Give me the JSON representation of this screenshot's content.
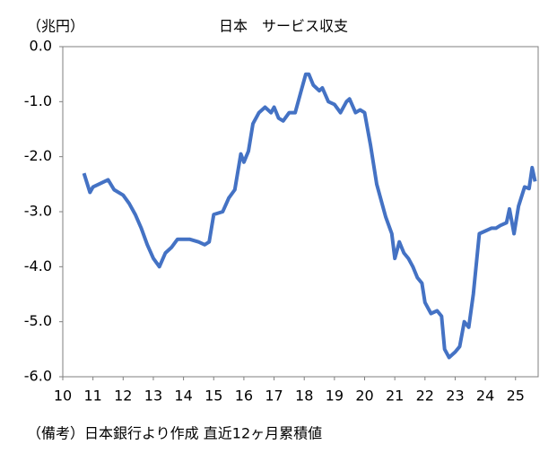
{
  "chart_data": {
    "type": "line",
    "title": "日本　サービス収支",
    "y_unit_label": "（兆円）",
    "note": "（備考）日本銀行より作成 直近12ヶ月累積値",
    "xlim": [
      10,
      25.75
    ],
    "xticks": [
      10,
      11,
      12,
      13,
      14,
      15,
      16,
      17,
      18,
      19,
      20,
      21,
      22,
      23,
      24,
      25
    ],
    "ylim": [
      -6,
      0
    ],
    "yticks": [
      {
        "value": 0,
        "label": "0.0"
      },
      {
        "value": -1,
        "label": "-1.0"
      },
      {
        "value": -2,
        "label": "-2.0"
      },
      {
        "value": -3,
        "label": "-3.0"
      },
      {
        "value": -4,
        "label": "-4.0"
      },
      {
        "value": -5,
        "label": "-5.0"
      },
      {
        "value": -6,
        "label": "-6.0"
      }
    ],
    "grid": false,
    "series": [
      {
        "color": "#4472c4",
        "x": [
          10.7,
          10.9,
          11.0,
          11.5,
          11.7,
          12.0,
          12.2,
          12.4,
          12.6,
          12.8,
          13.0,
          13.2,
          13.4,
          13.6,
          13.8,
          14.2,
          14.5,
          14.7,
          14.85,
          15.0,
          15.3,
          15.5,
          15.7,
          15.9,
          16.0,
          16.15,
          16.3,
          16.5,
          16.7,
          16.9,
          17.0,
          17.15,
          17.3,
          17.5,
          17.7,
          17.9,
          18.05,
          18.15,
          18.3,
          18.5,
          18.6,
          18.8,
          19.0,
          19.2,
          19.4,
          19.5,
          19.7,
          19.85,
          20.0,
          20.2,
          20.4,
          20.7,
          20.9,
          21.0,
          21.15,
          21.3,
          21.45,
          21.6,
          21.75,
          21.9,
          22.0,
          22.2,
          22.4,
          22.55,
          22.65,
          22.8,
          23.0,
          23.15,
          23.3,
          23.45,
          23.6,
          23.8,
          24.0,
          24.2,
          24.35,
          24.5,
          24.7,
          24.8,
          24.95,
          25.1,
          25.3,
          25.45,
          25.55,
          25.65
        ],
        "values": [
          -2.3,
          -2.65,
          -2.55,
          -2.42,
          -2.6,
          -2.7,
          -2.85,
          -3.05,
          -3.3,
          -3.6,
          -3.85,
          -4.0,
          -3.75,
          -3.65,
          -3.5,
          -3.5,
          -3.55,
          -3.6,
          -3.55,
          -3.05,
          -3.0,
          -2.75,
          -2.6,
          -1.95,
          -2.1,
          -1.9,
          -1.4,
          -1.2,
          -1.1,
          -1.2,
          -1.1,
          -1.3,
          -1.35,
          -1.2,
          -1.2,
          -0.8,
          -0.5,
          -0.5,
          -0.7,
          -0.8,
          -0.75,
          -1.0,
          -1.05,
          -1.2,
          -1.0,
          -0.95,
          -1.2,
          -1.15,
          -1.2,
          -1.8,
          -2.5,
          -3.1,
          -3.4,
          -3.85,
          -3.55,
          -3.75,
          -3.85,
          -4.0,
          -4.2,
          -4.3,
          -4.65,
          -4.85,
          -4.8,
          -4.9,
          -5.5,
          -5.65,
          -5.55,
          -5.45,
          -5.0,
          -5.1,
          -4.5,
          -3.4,
          -3.35,
          -3.3,
          -3.3,
          -3.25,
          -3.2,
          -2.95,
          -3.4,
          -2.9,
          -2.55,
          -2.58,
          -2.2,
          -2.45
        ]
      }
    ]
  }
}
